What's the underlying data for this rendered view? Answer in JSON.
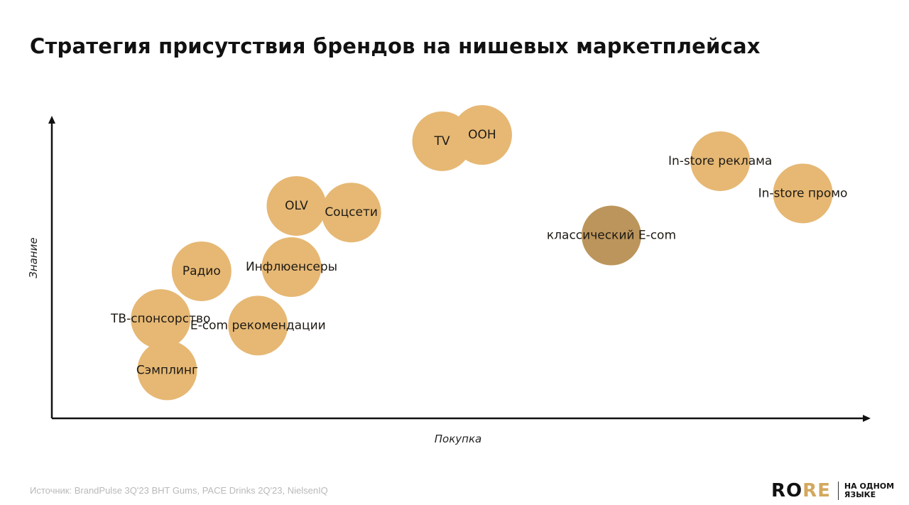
{
  "title": "Стратегия присутствия брендов на нишевых маркетплейсах",
  "source": "Источник: BrandPulse 3Q'23 BHT Gums, PACE Drinks 2Q'23, NielsenIQ",
  "logo": {
    "part1": "RO",
    "part2": "RE",
    "tagline": "НА ОДНОМ ЯЗЫКЕ"
  },
  "colors": {
    "bubble": "#e6b874",
    "bubble_highlight": "#bc955c",
    "axis": "#111111",
    "logo_accent": "#d3a85e"
  },
  "chart_data": {
    "type": "scatter",
    "xlabel": "Покупка",
    "ylabel": "Знание",
    "xlim": [
      0,
      100
    ],
    "ylim": [
      0,
      100
    ],
    "grid": false,
    "legend": "none",
    "points": [
      {
        "label": "TV",
        "x": 47.7,
        "y": 92.9,
        "highlight": false
      },
      {
        "label": "OOH",
        "x": 52.6,
        "y": 95.0,
        "highlight": false
      },
      {
        "label": "In-store реклама",
        "x": 81.7,
        "y": 86.2,
        "highlight": false
      },
      {
        "label": "In-store промо",
        "x": 91.8,
        "y": 75.4,
        "highlight": false
      },
      {
        "label": "OLV",
        "x": 29.9,
        "y": 71.2,
        "highlight": false
      },
      {
        "label": "Соцсети",
        "x": 36.6,
        "y": 69.0,
        "highlight": false
      },
      {
        "label": "классический E-com",
        "x": 68.4,
        "y": 61.3,
        "highlight": true
      },
      {
        "label": "Инфлюенсеры",
        "x": 29.3,
        "y": 50.7,
        "highlight": false
      },
      {
        "label": "Радио",
        "x": 18.3,
        "y": 49.3,
        "highlight": false
      },
      {
        "label": "ТВ-спонсорство",
        "x": 13.3,
        "y": 33.3,
        "highlight": false
      },
      {
        "label": "E-com рекомендации",
        "x": 25.2,
        "y": 31.1,
        "highlight": false
      },
      {
        "label": "Сэмплинг",
        "x": 14.1,
        "y": 16.1,
        "highlight": false
      }
    ]
  }
}
